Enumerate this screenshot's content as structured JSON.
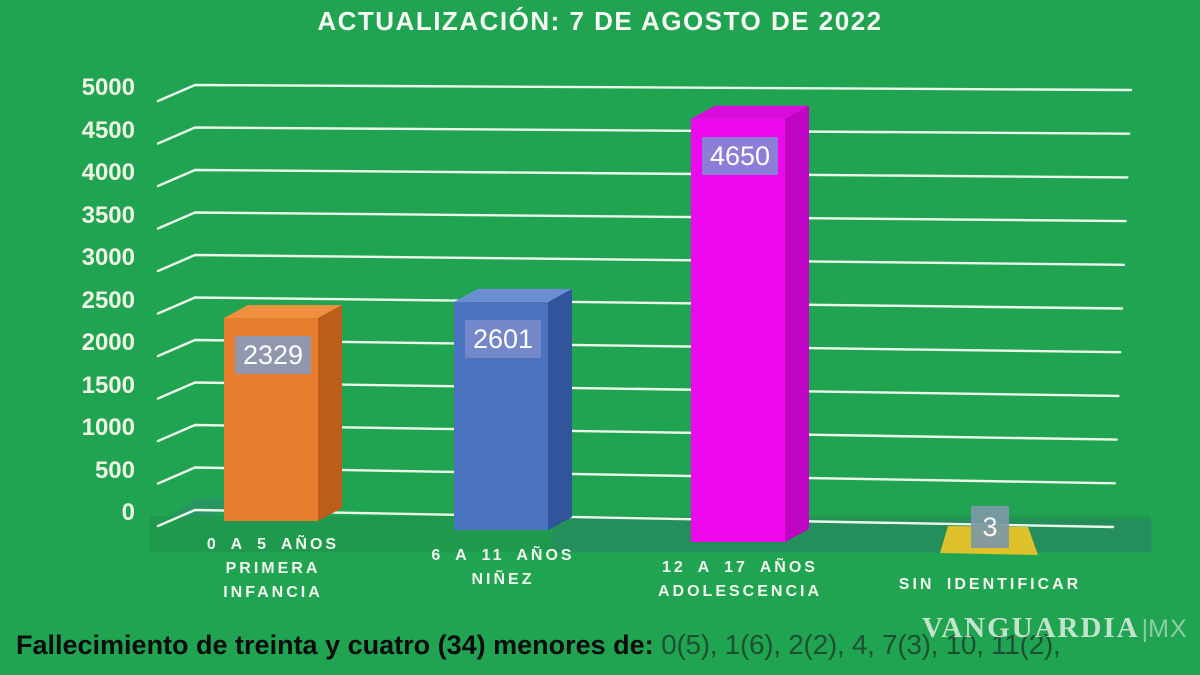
{
  "title": "ACTUALIZACIÓN: 7 DE AGOSTO DE 2022",
  "chart_data": {
    "type": "bar",
    "title": "ACTUALIZACIÓN: 7 DE AGOSTO DE 2022",
    "categories": [
      "0 A 5 AÑOS\nPRIMERA\nINFANCIA",
      "6 A 11 AÑOS\nNIÑEZ",
      "12 A 17 AÑOS\nADOLESCENCIA",
      "SIN IDENTIFICAR"
    ],
    "values": [
      2329,
      2601,
      4650,
      3
    ],
    "value_labels": [
      "2329",
      "2601",
      "4650",
      "3"
    ],
    "bar_colors": [
      "#e67e2e",
      "#4a74c0",
      "#ee08ee",
      "#dfc12c"
    ],
    "bar_side_colors": [
      "#bc5d1b",
      "#32549b",
      "#c004c4",
      "#c2a51f"
    ],
    "bar_top_colors": [
      "#ef9040",
      "#6b8ed2",
      "#d90cdb",
      "#e7cb3a"
    ],
    "value_label_bg": [
      "#9197ad",
      "#7488c9",
      "#8b7ed6",
      "#7e98a6"
    ],
    "xlabel": "",
    "ylabel": "",
    "ylim": [
      0,
      5000
    ],
    "ytick_step": 500,
    "yticks": [
      "5000",
      "4500",
      "4000",
      "3500",
      "3000",
      "2500",
      "2000",
      "1500",
      "1000",
      "500",
      "0"
    ],
    "grid": true,
    "legend": "none",
    "style": "3d-bars-on-green"
  },
  "colors": {
    "background": "#21a452",
    "gridline": "rgba(246,252,242,0.95)",
    "title_text": "#f6faf2",
    "axis_text": "#eef4e4",
    "category_text": "#f2f8ee"
  },
  "footer": {
    "lead": "Fallecimiento de treinta y cuatro (34) menores de:",
    "ages": " 0(5), 1(6), 2(2), 4, 7(3), 10, 11(2),"
  },
  "watermark": {
    "brand": "VANGUARDIA",
    "sep": "|",
    "suffix": "MX"
  }
}
